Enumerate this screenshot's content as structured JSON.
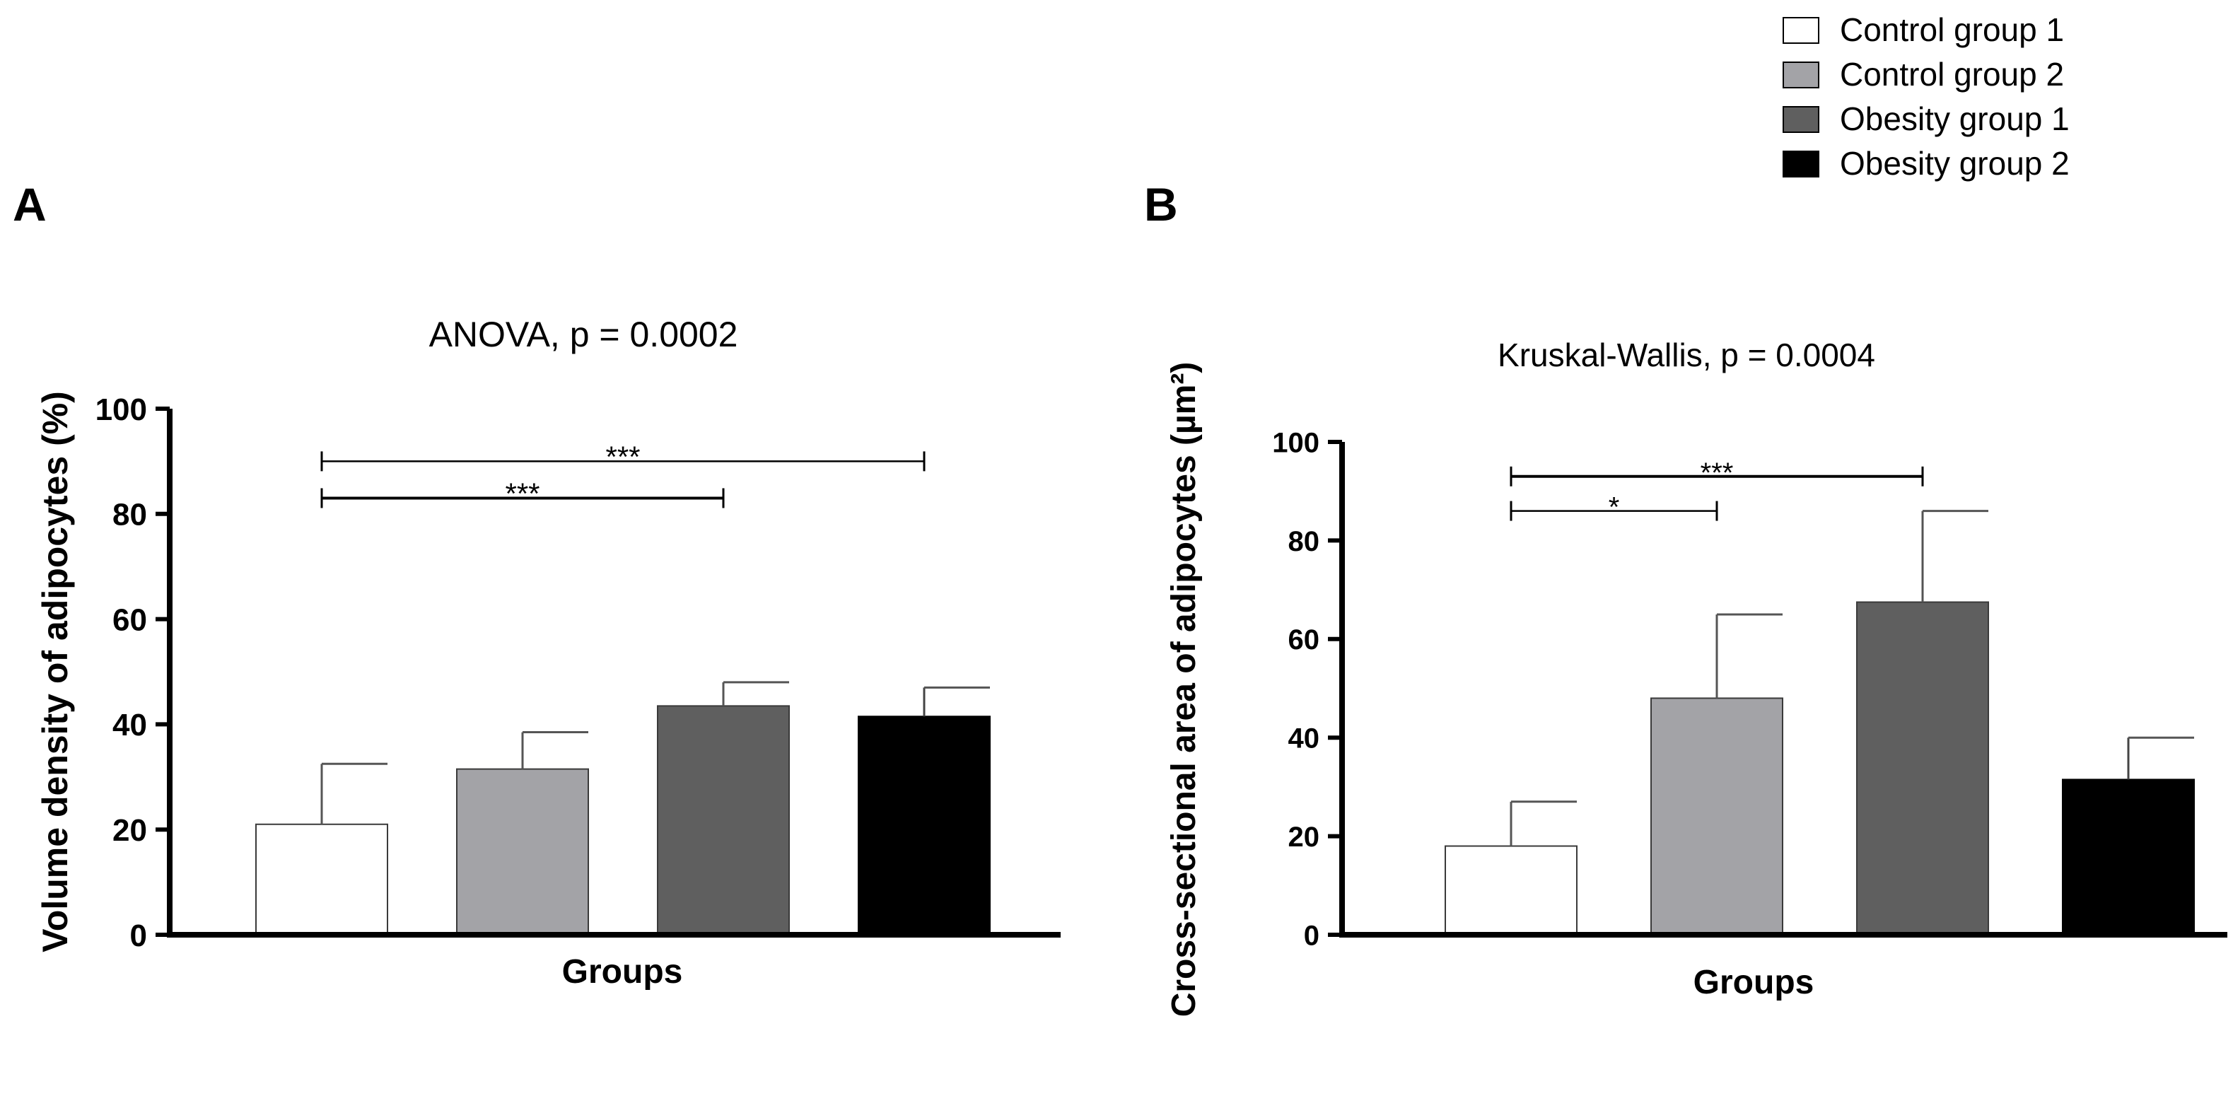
{
  "legend": [
    {
      "label": "Control group 1",
      "color": "#ffffff"
    },
    {
      "label": "Control group 2",
      "color": "#a3a3a7"
    },
    {
      "label": "Obesity group 1",
      "color": "#5f5f5f"
    },
    {
      "label": "Obesity group 2",
      "color": "#000000"
    }
  ],
  "chart_data": [
    {
      "type": "bar",
      "panel_label": "A",
      "title": "ANOVA, p = 0.0002",
      "xlabel": "Groups",
      "ylabel": "Volume density of adipocytes (%)",
      "ylim": [
        0,
        100
      ],
      "yticks": [
        "0",
        "20",
        "40",
        "60",
        "80",
        "100"
      ],
      "categories": [
        "Control group 1",
        "Control group 2",
        "Obesity group 1",
        "Obesity group 2"
      ],
      "values": [
        21,
        31.5,
        43.5,
        41.5
      ],
      "errors": [
        11.5,
        7,
        4.5,
        5.5
      ],
      "significance": [
        {
          "from": 0,
          "to": 2,
          "label": "***",
          "y": 83
        },
        {
          "from": 0,
          "to": 3,
          "label": "***",
          "y": 90
        }
      ]
    },
    {
      "type": "bar",
      "panel_label": "B",
      "title": "Kruskal-Wallis, p = 0.0004",
      "xlabel": "Groups",
      "ylabel": "Cross-sectional area of adipocytes (µm²)",
      "ylim": [
        0,
        100
      ],
      "yticks": [
        "0",
        "20",
        "40",
        "60",
        "80",
        "100"
      ],
      "categories": [
        "Control group 1",
        "Control group 2",
        "Obesity group 1",
        "Obesity group 2"
      ],
      "values": [
        18,
        48,
        67.5,
        31.5
      ],
      "errors": [
        9,
        17,
        18.5,
        8.5
      ],
      "significance": [
        {
          "from": 0,
          "to": 1,
          "label": "*",
          "y": 86
        },
        {
          "from": 0,
          "to": 2,
          "label": "***",
          "y": 93
        }
      ]
    }
  ]
}
